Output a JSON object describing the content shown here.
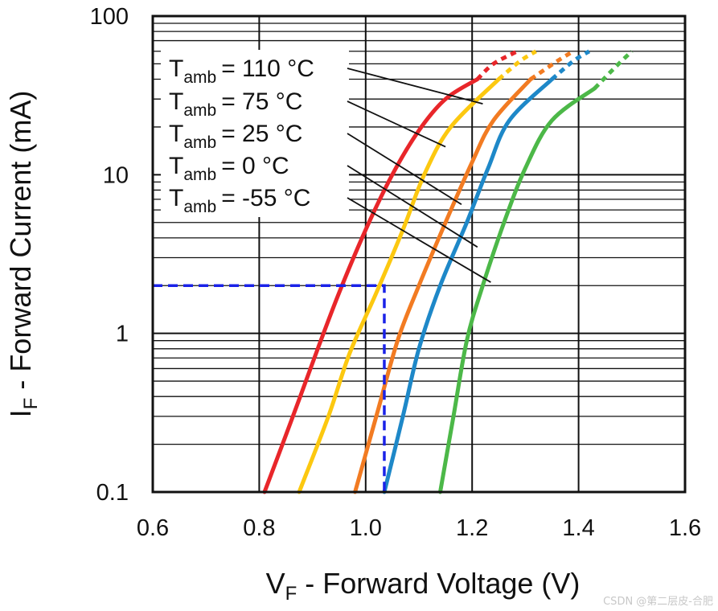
{
  "chart_data": {
    "type": "line",
    "xscale": "linear",
    "yscale": "log",
    "xlim": [
      0.6,
      1.6
    ],
    "ylim": [
      0.1,
      100
    ],
    "xticks": [
      "0.6",
      "0.8",
      "1.0",
      "1.2",
      "1.4",
      "1.6"
    ],
    "yticks": [
      "0.1",
      "1",
      "10",
      "100"
    ],
    "xlabel": {
      "main": "V",
      "sub": "F",
      "rest": " - Forward Voltage (V)"
    },
    "ylabel": {
      "main": "I",
      "sub": "F",
      "rest": " - Forward Current (mA)"
    },
    "grid": true,
    "series": [
      {
        "name": "Tamb = 110 °C",
        "temp": "110",
        "color": "#e8262a",
        "solid": [
          [
            0.81,
            0.1
          ],
          [
            0.86,
            0.28
          ],
          [
            0.91,
            0.8
          ],
          [
            0.95,
            1.8
          ],
          [
            1.0,
            4.5
          ],
          [
            1.05,
            10
          ],
          [
            1.1,
            19
          ],
          [
            1.15,
            30
          ],
          [
            1.21,
            40
          ]
        ],
        "dotted": [
          [
            1.21,
            40
          ],
          [
            1.24,
            50
          ],
          [
            1.285,
            60
          ]
        ]
      },
      {
        "name": "Tamb = 75 °C",
        "temp": "75",
        "color": "#fcc810",
        "solid": [
          [
            0.875,
            0.1
          ],
          [
            0.93,
            0.3
          ],
          [
            0.97,
            0.75
          ],
          [
            1.02,
            1.8
          ],
          [
            1.07,
            4.5
          ],
          [
            1.11,
            10
          ],
          [
            1.16,
            20
          ],
          [
            1.25,
            40
          ]
        ],
        "dotted": [
          [
            1.25,
            40
          ],
          [
            1.29,
            52
          ],
          [
            1.32,
            60
          ]
        ]
      },
      {
        "name": "Tamb = 25 °C",
        "temp": "25",
        "color": "#f27b22",
        "solid": [
          [
            0.98,
            0.1
          ],
          [
            1.02,
            0.3
          ],
          [
            1.06,
            0.9
          ],
          [
            1.1,
            2
          ],
          [
            1.15,
            5
          ],
          [
            1.2,
            12
          ],
          [
            1.24,
            22
          ],
          [
            1.31,
            40
          ]
        ],
        "dotted": [
          [
            1.31,
            40
          ],
          [
            1.36,
            52
          ],
          [
            1.39,
            60
          ]
        ]
      },
      {
        "name": "Tamb = 0 °C",
        "temp": "0",
        "color": "#1e88c8",
        "solid": [
          [
            1.035,
            0.1
          ],
          [
            1.07,
            0.3
          ],
          [
            1.1,
            0.8
          ],
          [
            1.14,
            2
          ],
          [
            1.19,
            5
          ],
          [
            1.23,
            11
          ],
          [
            1.27,
            22
          ],
          [
            1.35,
            40
          ]
        ],
        "dotted": [
          [
            1.35,
            40
          ],
          [
            1.39,
            52
          ],
          [
            1.42,
            60
          ]
        ]
      },
      {
        "name": "Tamb = -55 °C",
        "temp": "-55",
        "color": "#4cb848",
        "solid": [
          [
            1.14,
            0.1
          ],
          [
            1.165,
            0.3
          ],
          [
            1.19,
            0.9
          ],
          [
            1.22,
            2
          ],
          [
            1.26,
            5
          ],
          [
            1.3,
            11
          ],
          [
            1.35,
            22
          ],
          [
            1.43,
            35
          ]
        ],
        "dotted": [
          [
            1.43,
            35
          ],
          [
            1.47,
            48
          ],
          [
            1.5,
            60
          ]
        ]
      }
    ],
    "legend": {
      "placement": "top-left",
      "label_main": "T",
      "label_sub": "amb",
      "entries": [
        {
          "text": "= 110 °C",
          "points_to": [
            1.22,
            28
          ]
        },
        {
          "text": "= 75 °C",
          "points_to": [
            1.15,
            15
          ]
        },
        {
          "text": "= 25 °C",
          "points_to": [
            1.18,
            6.5
          ]
        },
        {
          "text": "= 0 °C",
          "points_to": [
            1.21,
            3.5
          ]
        },
        {
          "text": "= -55 °C",
          "points_to": [
            1.235,
            2.1
          ]
        }
      ]
    },
    "annotation": {
      "type": "dashed-reference",
      "color": "#1a22e8",
      "x": 1.035,
      "y": 2.0
    }
  },
  "watermark": "CSDN @第二层皮-合肥"
}
